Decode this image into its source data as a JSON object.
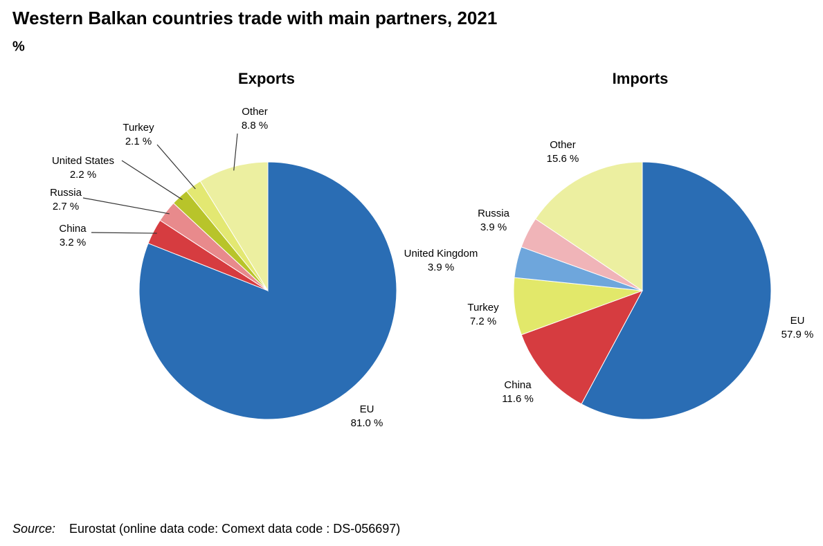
{
  "title": "Western Balkan countries trade with main partners, 2021",
  "subtitle": "%",
  "source": {
    "label": "Source:",
    "text": "Eurostat (online data code: Comext data code : DS-056697)"
  },
  "chart_data": [
    {
      "type": "pie",
      "title": "Exports",
      "categories": [
        "EU",
        "China",
        "Russia",
        "United States",
        "Turkey",
        "Other"
      ],
      "values": [
        81.0,
        3.2,
        2.7,
        2.2,
        2.1,
        8.8
      ],
      "value_labels": [
        "81.0 %",
        "3.2 %",
        "2.7 %",
        "2.2 %",
        "2.1 %",
        "8.8 %"
      ],
      "colors": [
        "#2a6db4",
        "#d63c40",
        "#e88a8c",
        "#b8c42a",
        "#e3e872",
        "#ecefa0"
      ]
    },
    {
      "type": "pie",
      "title": "Imports",
      "categories": [
        "EU",
        "China",
        "Turkey",
        "United Kingdom",
        "Russia",
        "Other"
      ],
      "values": [
        57.9,
        11.6,
        7.2,
        3.9,
        3.9,
        15.6
      ],
      "value_labels": [
        "57.9 %",
        "11.6 %",
        "7.2 %",
        "3.9 %",
        "3.9 %",
        "15.6 %"
      ],
      "colors": [
        "#2a6db4",
        "#d63c40",
        "#e2e86a",
        "#6ea6dc",
        "#f0b4b8",
        "#ecefa0"
      ]
    }
  ]
}
